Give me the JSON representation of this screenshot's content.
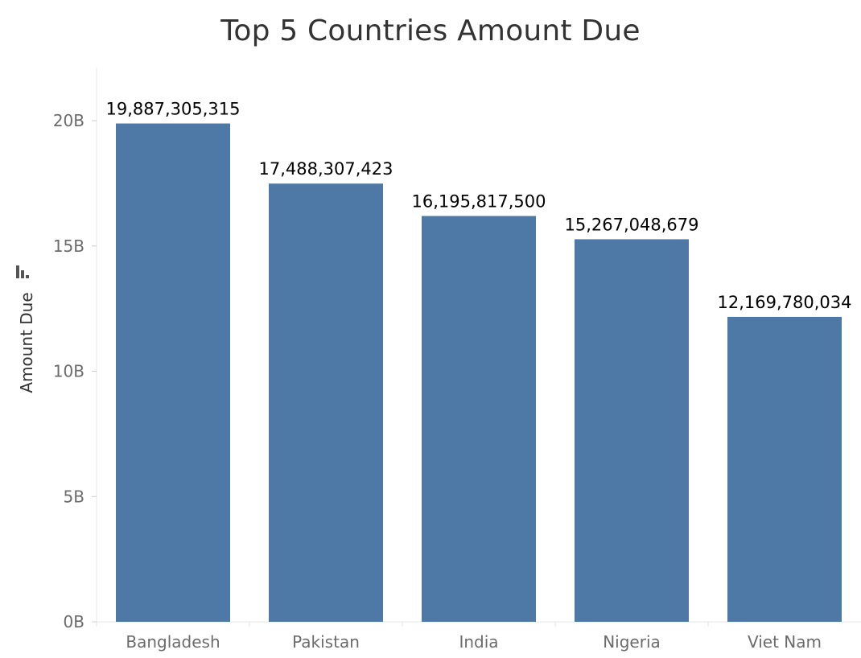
{
  "chart_data": {
    "type": "bar",
    "title": "Top 5 Countries Amount Due",
    "xlabel": "",
    "ylabel": "Amount Due",
    "categories": [
      "Bangladesh",
      "Pakistan",
      "India",
      "Nigeria",
      "Viet Nam"
    ],
    "values": [
      19887305315,
      17488307423,
      16195817500,
      15267048679,
      12169780034
    ],
    "data_labels": [
      "19,887,305,315",
      "17,488,307,423",
      "16,195,817,500",
      "15,267,048,679",
      "12,169,780,034"
    ],
    "yticks": [
      0,
      5000000000,
      10000000000,
      15000000000,
      20000000000
    ],
    "ytick_labels": [
      "0B",
      "5B",
      "10B",
      "15B",
      "20B"
    ],
    "ylim": [
      0,
      20000000000
    ],
    "grid": false,
    "sort_icon": "sort-descending-icon",
    "colors": {
      "bar": "#4e79a7",
      "axis": "#e6e6e6",
      "tick_text": "#6b6b6b",
      "title_text": "#333333",
      "label_text": "#000000"
    }
  }
}
